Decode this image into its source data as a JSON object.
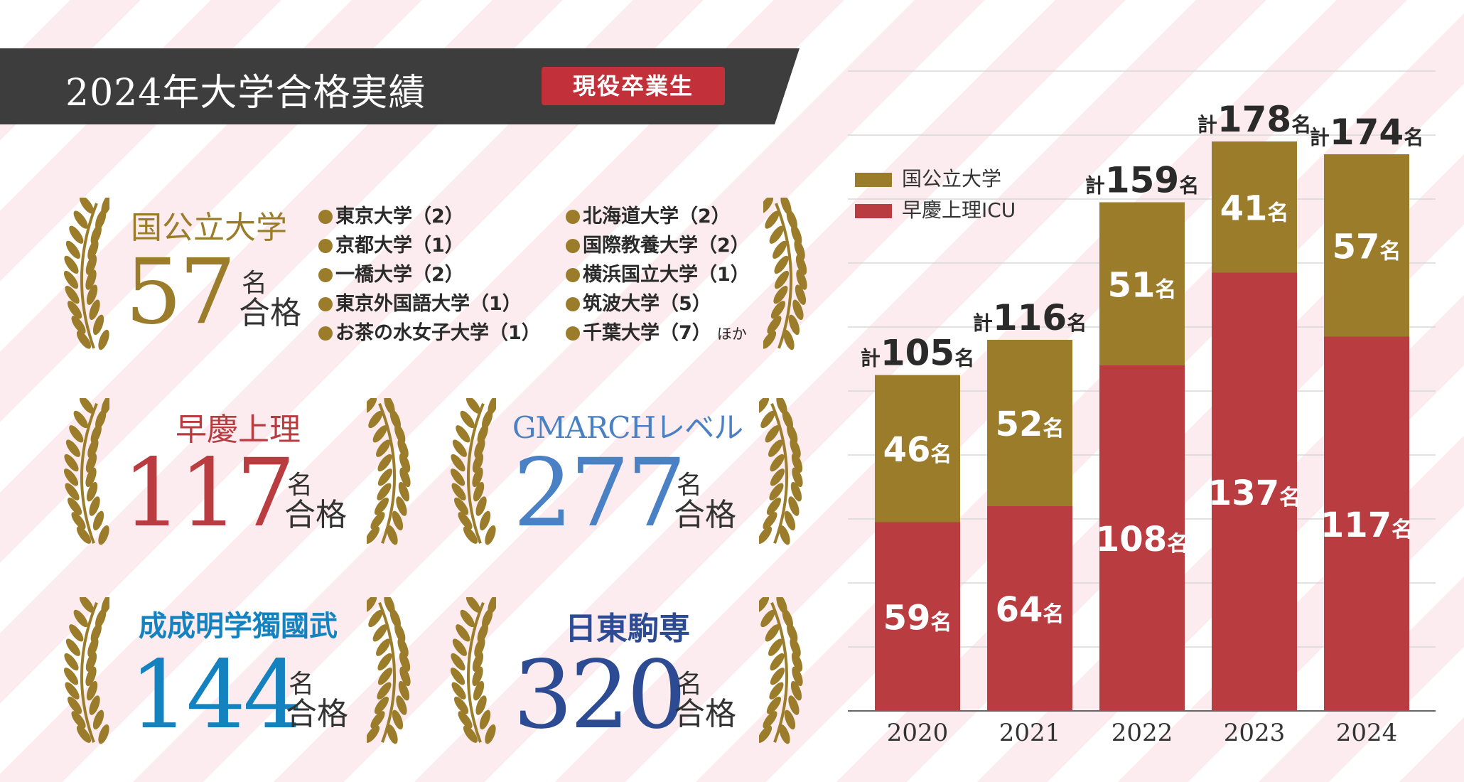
{
  "header": {
    "title": "2024年大学合格実績",
    "badge": "現役卒業生"
  },
  "cards": {
    "kokkoritsu": {
      "category": "国公立大学",
      "count": "57",
      "unit_mei": "名",
      "unit_goukaku": "合格",
      "universities_left": [
        "東京大学（2）",
        "京都大学（1）",
        "一橋大学（2）",
        "東京外国語大学（1）",
        "お茶の水女子大学（1）"
      ],
      "universities_right": [
        "北海道大学（2）",
        "国際教養大学（2）",
        "横浜国立大学（1）",
        "筑波大学（5）",
        "千葉大学（7）"
      ],
      "suffix": "ほか"
    },
    "sokeijochi": {
      "category": "早慶上理",
      "count": "117",
      "unit_mei": "名",
      "unit_goukaku": "合格"
    },
    "gmarch": {
      "category": "GMARCHレベル",
      "count": "277",
      "unit_mei": "名",
      "unit_goukaku": "合格"
    },
    "seisei": {
      "category": "成成明学獨國武",
      "count": "144",
      "unit_mei": "名",
      "unit_goukaku": "合格"
    },
    "nittokomasen": {
      "category": "日東駒専",
      "count": "320",
      "unit_mei": "名",
      "unit_goukaku": "合格"
    }
  },
  "colors": {
    "gold": "#9b7c2a",
    "red": "#b93c40",
    "blue_light": "#4a80c4",
    "blue_cyan": "#1582c0",
    "blue_dark": "#2c4b93",
    "banner": "#3d3d3d",
    "badge": "#c2313a"
  },
  "chart_data": {
    "type": "bar",
    "stacked": true,
    "categories": [
      "2020",
      "2021",
      "2022",
      "2023",
      "2024"
    ],
    "series": [
      {
        "name": "早慶上理ICU",
        "color": "#b93c40",
        "values": [
          59,
          64,
          108,
          137,
          117
        ]
      },
      {
        "name": "国公立大学",
        "color": "#9b7c2a",
        "values": [
          46,
          52,
          51,
          41,
          57
        ]
      }
    ],
    "totals": [
      105,
      116,
      159,
      178,
      174
    ],
    "total_prefix": "計",
    "unit": "名",
    "ylim": [
      0,
      200
    ],
    "grid": true,
    "legend": "top-left"
  }
}
